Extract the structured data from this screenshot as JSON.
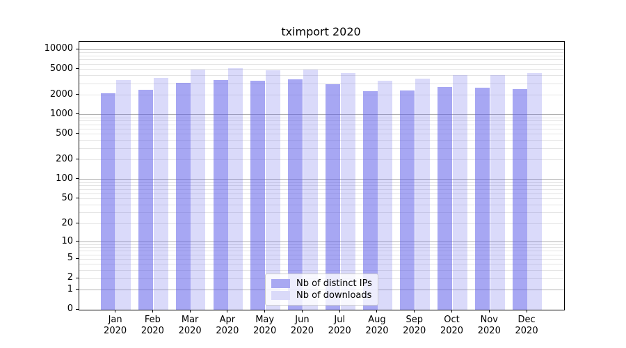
{
  "chart_data": {
    "type": "bar",
    "title": "tximport 2020",
    "xlabel": "",
    "ylabel": "",
    "scale": "log1p",
    "grid": true,
    "legend_position": "lower center",
    "year_label": "2020",
    "categories": [
      "Jan",
      "Feb",
      "Mar",
      "Apr",
      "May",
      "Jun",
      "Jul",
      "Aug",
      "Sep",
      "Oct",
      "Nov",
      "Dec"
    ],
    "series": [
      {
        "name": "Nb of distinct IPs",
        "color": "rgba(86,86,232,0.52)",
        "legend_color": "#a8a8f2",
        "values": [
          2130,
          2390,
          3110,
          3450,
          3350,
          3470,
          2970,
          2320,
          2380,
          2650,
          2600,
          2480
        ]
      },
      {
        "name": "Nb of downloads",
        "color": "rgba(86,86,232,0.22)",
        "legend_color": "#dadaf9",
        "values": [
          3440,
          3670,
          4900,
          5250,
          4800,
          4990,
          4400,
          3350,
          3600,
          4050,
          4100,
          4350
        ]
      }
    ],
    "yticks": [
      10000,
      5000,
      2000,
      1000,
      500,
      200,
      100,
      50,
      20,
      10,
      5,
      2,
      1,
      0
    ],
    "ylim": [
      0,
      13200
    ],
    "gridlines": {
      "major": [
        1,
        10,
        100,
        1000,
        10000
      ],
      "minor": [
        2,
        3,
        4,
        5,
        6,
        7,
        8,
        9,
        20,
        30,
        40,
        50,
        60,
        70,
        80,
        90,
        200,
        300,
        400,
        500,
        600,
        700,
        800,
        900,
        2000,
        3000,
        4000,
        5000,
        6000,
        7000,
        8000,
        9000
      ]
    },
    "colors": {
      "axis": "#000000",
      "grid_major": "#b0b0b0",
      "grid_minor": "#e4e4e4",
      "background": "#ffffff"
    }
  }
}
